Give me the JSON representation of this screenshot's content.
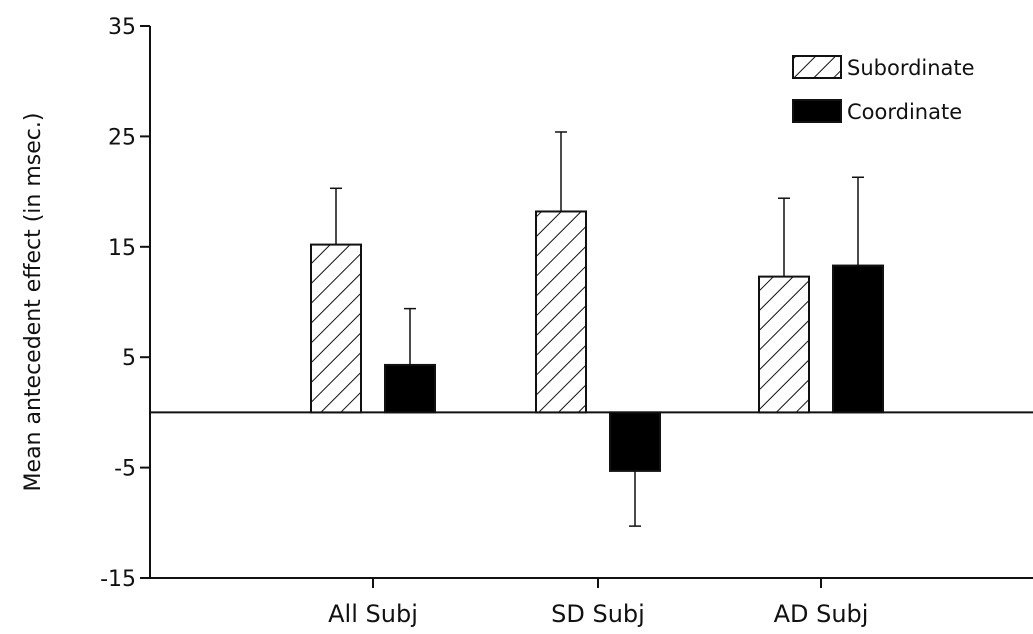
{
  "chart_data": {
    "type": "bar",
    "ylabel": "Mean antecedent effect (in msec.)",
    "ylim": [
      -15,
      35
    ],
    "yticks": [
      35,
      25,
      15,
      5,
      -5,
      -15
    ],
    "ytick_labels": [
      "35",
      "25",
      "15",
      "5",
      "-5",
      "-15"
    ],
    "categories": [
      "All Subj",
      "SD Subj",
      "AD Subj"
    ],
    "series": [
      {
        "name": "Subordinate",
        "values": [
          15.2,
          18.2,
          12.3
        ],
        "errors": [
          5.1,
          7.2,
          7.1
        ],
        "fill": "hatch"
      },
      {
        "name": "Coordinate",
        "values": [
          4.3,
          -5.3,
          13.3
        ],
        "errors": [
          5.1,
          5.0,
          8.0
        ],
        "fill": "#000000"
      }
    ],
    "legend_position": "top-right",
    "zero_line": true,
    "grid": false
  }
}
